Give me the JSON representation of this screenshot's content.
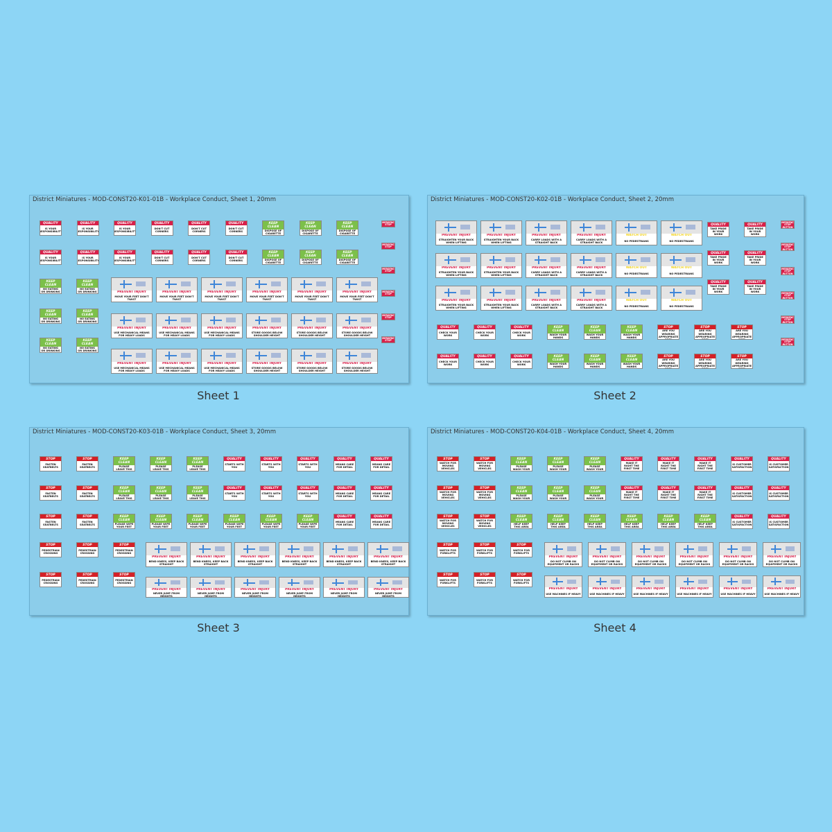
{
  "sheets": [
    {
      "title": "District Miniatures - MOD-CONST20-K01-01B - Workplace Conduct, Sheet 1, 20mm",
      "caption": "Sheet 1",
      "signs": [
        {
          "header": "QUALITY",
          "body": "IS YOUR RESPONSIBILITY",
          "color": "#d8204a"
        },
        {
          "header": "QUALITY",
          "body": "DON'T CUT CORNERS",
          "color": "#d8204a"
        },
        {
          "header": "KEEP CLEAN",
          "body": "DISPOSE OF CIGARETTE BUTTS THOUGHTFULLY",
          "color": "#7cc04a"
        },
        {
          "header": "KEEP CLEAN",
          "body": "NO EATING OR DRINKING IN THIS AREA",
          "color": "#7cc04a"
        },
        {
          "header": "PREVENT INJURY",
          "body": "MOVE YOUR FEET DON'T TWIST",
          "color": "#d8204a"
        },
        {
          "header": "PREVENT INJURY",
          "body": "USE MECHANICAL MEANS FOR HEAVY LOADS",
          "color": "#d8204a"
        },
        {
          "header": "PREVENT INJURY",
          "body": "STORE GOODS BELOW SHOULDER HEIGHT",
          "color": "#d8204a"
        },
        {
          "header": "EMERGENCY STOP",
          "color": "#d8204a"
        }
      ]
    },
    {
      "title": "District Miniatures - MOD-CONST20-K02-01B - Workplace Conduct, Sheet 2, 20mm",
      "caption": "Sheet 2",
      "signs": [
        {
          "header": "PREVENT INJURY",
          "body": "STRAIGHTEN YOUR BACK WHEN LIFTING",
          "color": "#d8204a"
        },
        {
          "header": "PREVENT INJURY",
          "body": "CARRY LOADS WITH A STRAIGHT BACK",
          "color": "#d8204a"
        },
        {
          "header": "WATCH OUT",
          "body": "NO PEDESTRIANS",
          "color": "#f2d21b"
        },
        {
          "header": "QUALITY",
          "body": "TAKE PRIDE IN YOUR WORK",
          "color": "#d8204a"
        },
        {
          "header": "QUALITY",
          "body": "CHECK YOUR WORK",
          "color": "#d8204a"
        },
        {
          "header": "KEEP CLEAN",
          "body": "WASH YOUR HANDS BEFORE RETURNING TO WORK",
          "color": "#7cc04a"
        },
        {
          "header": "STOP",
          "body": "ARE YOU WEARING APPROPRIATE PPE?",
          "color": "#d42027"
        },
        {
          "header": "EMERGENCY STOP BUTTON",
          "color": "#d8204a"
        }
      ]
    },
    {
      "title": "District Miniatures - MOD-CONST20-K03-01B - Workplace Conduct, Sheet 3, 20mm",
      "caption": "Sheet 3",
      "signs": [
        {
          "header": "STOP",
          "body": "FASTEN SEATBELTS",
          "color": "#d42027"
        },
        {
          "header": "KEEP CLEAN",
          "body": "PLEASE LEAVE THIS LUNCH AREA CLEAN",
          "color": "#7cc04a"
        },
        {
          "header": "QUALITY",
          "body": "STARTS WITH YOU",
          "color": "#d8204a"
        },
        {
          "header": "QUALITY",
          "body": "MEANS CARE FOR DETAIL",
          "color": "#d8204a"
        },
        {
          "header": "KEEP CLEAN",
          "body": "PLEASE WIPE YOUR FEET BEFORE ENTERING",
          "color": "#7cc04a"
        },
        {
          "header": "STOP",
          "body": "PEDESTRIAN CROSSING",
          "color": "#d42027"
        },
        {
          "header": "PREVENT INJURY",
          "body": "BEND KNEES, KEEP BACK STRAIGHT",
          "color": "#d8204a"
        },
        {
          "header": "PREVENT INJURY",
          "body": "NEVER JUMP FROM HEIGHTS",
          "color": "#d8204a"
        }
      ]
    },
    {
      "title": "District Miniatures - MOD-CONST20-K04-01B - Workplace Conduct, Sheet 4, 20mm",
      "caption": "Sheet 4",
      "signs": [
        {
          "header": "STOP",
          "body": "WATCH FOR MOVING VEHICLES",
          "color": "#d42027"
        },
        {
          "header": "KEEP CLEAN",
          "body": "PLEASE WASH YOUR OWN DISHES",
          "color": "#7cc04a"
        },
        {
          "header": "QUALITY",
          "body": "MAKE IT RIGHT THE FIRST TIME",
          "color": "#d8204a"
        },
        {
          "header": "QUALITY",
          "body": "IS CUSTOMER SATISFACTION",
          "color": "#d8204a"
        },
        {
          "header": "KEEP CLEAN",
          "body": "HELP KEEP THIS AREA CLEAN AND TIDY",
          "color": "#7cc04a"
        },
        {
          "header": "STOP",
          "body": "WATCH FOR FORKLIFTS",
          "color": "#d42027"
        },
        {
          "header": "PREVENT INJURY",
          "body": "DO NOT CLIMB ON EQUIPMENT OR RACKS",
          "color": "#d8204a"
        },
        {
          "header": "PREVENT INJURY",
          "body": "USE MACHINES IF HEAVY",
          "color": "#d8204a"
        }
      ]
    }
  ]
}
